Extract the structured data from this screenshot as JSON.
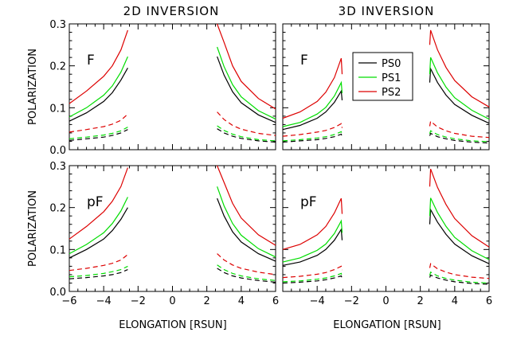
{
  "chart_data": {
    "type": "line",
    "column_titles": [
      "2D INVERSION",
      "3D INVERSION"
    ],
    "xlabel": "ELONGATION [RSUN]",
    "ylabel": "POLARIZATION",
    "xlim": [
      -6,
      6
    ],
    "ylim": [
      0,
      0.3
    ],
    "x_ticks": [
      -6,
      -4,
      -2,
      0,
      2,
      4,
      6
    ],
    "y_ticks": [
      0.0,
      0.1,
      0.2,
      0.3
    ],
    "x_tick_labels": [
      "−6",
      "−4",
      "−2",
      "0",
      "2",
      "4",
      "6"
    ],
    "y_tick_labels": [
      "0.0",
      "0.1",
      "0.2",
      "0.3"
    ],
    "legend": {
      "placement": "top-right of upper-right panel",
      "entries": [
        {
          "name": "PS0",
          "color": "#000000"
        },
        {
          "name": "PS1",
          "color": "#00dd00"
        },
        {
          "name": "PS2",
          "color": "#dd0000"
        }
      ]
    },
    "line_styles": {
      "solid": "solid",
      "dashed": "dashed"
    },
    "panels": [
      {
        "id": "2d-F",
        "label": "F",
        "left_x": [
          -6,
          -5,
          -4,
          -3.5,
          -3,
          -2.6
        ],
        "right_x": [
          2.6,
          3,
          3.5,
          4,
          5,
          6
        ],
        "series": [
          {
            "name": "PS0",
            "style": "solid",
            "left": [
              0.068,
              0.088,
              0.115,
              0.136,
              0.166,
              0.195
            ],
            "right": [
              0.222,
              0.178,
              0.138,
              0.112,
              0.083,
              0.065
            ]
          },
          {
            "name": "PS1",
            "style": "solid",
            "left": [
              0.078,
              0.1,
              0.13,
              0.152,
              0.185,
              0.222
            ],
            "right": [
              0.245,
              0.198,
              0.155,
              0.126,
              0.093,
              0.073
            ]
          },
          {
            "name": "PS2",
            "style": "solid",
            "left": [
              0.11,
              0.14,
              0.175,
              0.2,
              0.238,
              0.285
            ],
            "right": [
              0.318,
              0.256,
              0.2,
              0.163,
              0.122,
              0.097
            ]
          },
          {
            "name": "PS0",
            "style": "dashed",
            "left": [
              0.022,
              0.026,
              0.03,
              0.034,
              0.04,
              0.048
            ],
            "right": [
              0.05,
              0.04,
              0.032,
              0.027,
              0.021,
              0.018
            ]
          },
          {
            "name": "PS1",
            "style": "dashed",
            "left": [
              0.026,
              0.03,
              0.035,
              0.039,
              0.045,
              0.054
            ],
            "right": [
              0.057,
              0.046,
              0.037,
              0.031,
              0.024,
              0.021
            ]
          },
          {
            "name": "PS2",
            "style": "dashed",
            "left": [
              0.042,
              0.048,
              0.055,
              0.061,
              0.07,
              0.085
            ],
            "right": [
              0.09,
              0.072,
              0.058,
              0.049,
              0.039,
              0.034
            ]
          }
        ]
      },
      {
        "id": "3d-F",
        "label": "F",
        "left_x": [
          -6,
          -5,
          -4,
          -3.5,
          -3,
          -2.6,
          -2.55
        ],
        "right_x": [
          2.55,
          2.6,
          3,
          3.5,
          4,
          5,
          6
        ],
        "series": [
          {
            "name": "PS0",
            "style": "solid",
            "left": [
              0.048,
              0.058,
              0.075,
              0.09,
              0.113,
              0.14,
              0.118
            ],
            "right": [
              0.16,
              0.193,
              0.16,
              0.13,
              0.108,
              0.082,
              0.063
            ]
          },
          {
            "name": "PS1",
            "style": "solid",
            "left": [
              0.055,
              0.065,
              0.085,
              0.101,
              0.128,
              0.16,
              0.135
            ],
            "right": [
              0.18,
              0.22,
              0.183,
              0.149,
              0.124,
              0.094,
              0.073
            ]
          },
          {
            "name": "PS2",
            "style": "solid",
            "left": [
              0.075,
              0.09,
              0.115,
              0.137,
              0.172,
              0.218,
              0.18
            ],
            "right": [
              0.25,
              0.285,
              0.238,
              0.196,
              0.165,
              0.126,
              0.102
            ]
          },
          {
            "name": "PS0",
            "style": "dashed",
            "left": [
              0.018,
              0.021,
              0.024,
              0.027,
              0.031,
              0.037,
              0.031
            ],
            "right": [
              0.033,
              0.039,
              0.031,
              0.026,
              0.022,
              0.018,
              0.016
            ]
          },
          {
            "name": "PS1",
            "style": "dashed",
            "left": [
              0.021,
              0.024,
              0.028,
              0.031,
              0.036,
              0.043,
              0.036
            ],
            "right": [
              0.038,
              0.045,
              0.036,
              0.03,
              0.026,
              0.021,
              0.019
            ]
          },
          {
            "name": "PS2",
            "style": "dashed",
            "left": [
              0.032,
              0.036,
              0.042,
              0.046,
              0.053,
              0.062,
              0.052
            ],
            "right": [
              0.056,
              0.068,
              0.054,
              0.045,
              0.039,
              0.032,
              0.029
            ]
          }
        ]
      },
      {
        "id": "2d-pF",
        "label": "pF",
        "left_x": [
          -6,
          -5,
          -4,
          -3.5,
          -3,
          -2.6
        ],
        "right_x": [
          2.6,
          3,
          3.5,
          4,
          5,
          6
        ],
        "series": [
          {
            "name": "PS0",
            "style": "solid",
            "left": [
              0.08,
              0.1,
              0.125,
              0.145,
              0.172,
              0.2
            ],
            "right": [
              0.222,
              0.18,
              0.142,
              0.118,
              0.09,
              0.072
            ]
          },
          {
            "name": "PS1",
            "style": "solid",
            "left": [
              0.09,
              0.112,
              0.14,
              0.162,
              0.192,
              0.225
            ],
            "right": [
              0.25,
              0.204,
              0.162,
              0.134,
              0.102,
              0.082
            ]
          },
          {
            "name": "PS2",
            "style": "solid",
            "left": [
              0.125,
              0.155,
              0.19,
              0.215,
              0.25,
              0.295
            ],
            "right": [
              0.31,
              0.26,
              0.21,
              0.175,
              0.135,
              0.11
            ]
          },
          {
            "name": "PS0",
            "style": "dashed",
            "left": [
              0.03,
              0.033,
              0.037,
              0.04,
              0.045,
              0.052
            ],
            "right": [
              0.055,
              0.045,
              0.037,
              0.032,
              0.026,
              0.022
            ]
          },
          {
            "name": "PS1",
            "style": "dashed",
            "left": [
              0.035,
              0.038,
              0.043,
              0.047,
              0.052,
              0.06
            ],
            "right": [
              0.063,
              0.052,
              0.043,
              0.037,
              0.03,
              0.026
            ]
          },
          {
            "name": "PS2",
            "style": "dashed",
            "left": [
              0.05,
              0.055,
              0.062,
              0.067,
              0.075,
              0.088
            ],
            "right": [
              0.09,
              0.075,
              0.063,
              0.055,
              0.046,
              0.04
            ]
          }
        ]
      },
      {
        "id": "3d-pF",
        "label": "pF",
        "left_x": [
          -6,
          -5,
          -4,
          -3.5,
          -3,
          -2.6,
          -2.55
        ],
        "right_x": [
          2.55,
          2.6,
          3,
          3.5,
          4,
          5,
          6
        ],
        "series": [
          {
            "name": "PS0",
            "style": "solid",
            "left": [
              0.062,
              0.07,
              0.086,
              0.1,
              0.122,
              0.148,
              0.122
            ],
            "right": [
              0.16,
              0.195,
              0.165,
              0.136,
              0.113,
              0.085,
              0.066
            ]
          },
          {
            "name": "PS1",
            "style": "solid",
            "left": [
              0.07,
              0.08,
              0.098,
              0.113,
              0.138,
              0.168,
              0.14
            ],
            "right": [
              0.18,
              0.223,
              0.188,
              0.155,
              0.129,
              0.097,
              0.076
            ]
          },
          {
            "name": "PS2",
            "style": "solid",
            "left": [
              0.1,
              0.112,
              0.135,
              0.155,
              0.187,
              0.222,
              0.185
            ],
            "right": [
              0.25,
              0.292,
              0.248,
              0.207,
              0.174,
              0.133,
              0.106
            ]
          },
          {
            "name": "PS0",
            "style": "dashed",
            "left": [
              0.02,
              0.022,
              0.025,
              0.028,
              0.032,
              0.037,
              0.031
            ],
            "right": [
              0.033,
              0.039,
              0.032,
              0.027,
              0.023,
              0.019,
              0.017
            ]
          },
          {
            "name": "PS1",
            "style": "dashed",
            "left": [
              0.023,
              0.025,
              0.029,
              0.032,
              0.037,
              0.043,
              0.036
            ],
            "right": [
              0.038,
              0.046,
              0.037,
              0.031,
              0.027,
              0.022,
              0.02
            ]
          },
          {
            "name": "PS2",
            "style": "dashed",
            "left": [
              0.033,
              0.036,
              0.041,
              0.045,
              0.052,
              0.06,
              0.051
            ],
            "right": [
              0.056,
              0.066,
              0.054,
              0.046,
              0.04,
              0.034,
              0.031
            ]
          }
        ]
      }
    ]
  }
}
